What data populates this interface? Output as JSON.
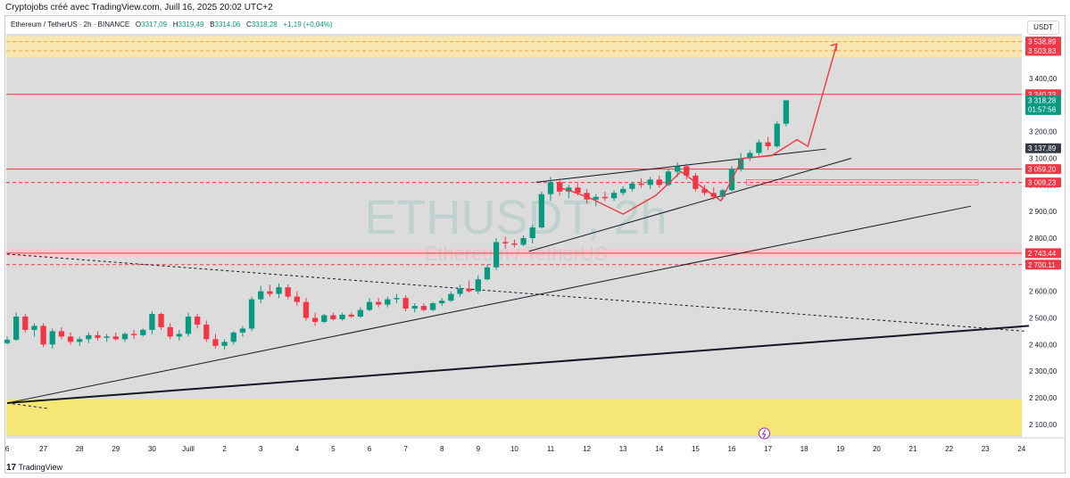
{
  "header": {
    "attribution": "Cryptojobs créé avec TradingView.com, Juill 16, 2025 20:02 UTC+2"
  },
  "legend": {
    "symbol": "Ethereum / TetherUS · 2h · BINANCE",
    "open_k": "O",
    "open": "3317,09",
    "high_k": "H",
    "high": "3319,49",
    "low_k": "B",
    "low": "3314,06",
    "close_k": "C",
    "close": "3318,28",
    "change": "+1,19 (+0,04%)"
  },
  "currency": "USDT",
  "watermark": {
    "main": "ETHUSDT, 2h",
    "sub": "Ethereum / TetherUS"
  },
  "footer": {
    "brand": "TradingView"
  },
  "colors": {
    "up": "#089981",
    "down": "#f23645",
    "resistance": "#f23645",
    "zone_yellow": "#f5e79a",
    "zone_orange": "#f9d9a0",
    "plot_bg": "#dcdcdc"
  },
  "chart_data": {
    "type": "candlestick",
    "symbol": "ETHUSDT",
    "interval": "2h",
    "ylim": [
      2070,
      3590
    ],
    "y_ticks": [
      "2 100,00",
      "2 200,00",
      "2 300,00",
      "2 400,00",
      "2 500,00",
      "2 600,00",
      "2 700,00",
      "2 800,00",
      "2 900,00",
      "3 000,00",
      "3 100,00",
      "3 200,00",
      "3 300,00",
      "3 400,00"
    ],
    "y_tick_values": [
      2100,
      2200,
      2300,
      2400,
      2500,
      2600,
      2700,
      2800,
      2900,
      3000,
      3100,
      3200,
      3300,
      3400
    ],
    "x_ticks": [
      "6",
      "27",
      "28",
      "29",
      "30",
      "Juill",
      "2",
      "3",
      "4",
      "5",
      "6",
      "7",
      "8",
      "9",
      "10",
      "11",
      "12",
      "13",
      "14",
      "15",
      "16",
      "17",
      "18",
      "19",
      "20",
      "21",
      "22",
      "23",
      "24"
    ],
    "x_tick_days": [
      0,
      1,
      2,
      3,
      4,
      5,
      6,
      7,
      8,
      9,
      10,
      11,
      12,
      13,
      14,
      15,
      16,
      17,
      18,
      19,
      20,
      21,
      22,
      23,
      24,
      25,
      26,
      27,
      28
    ],
    "price_labels": [
      {
        "text": "3 538,89",
        "value": 3538.89,
        "color": "#f23645"
      },
      {
        "text": "3 503,83",
        "value": 3503.83,
        "color": "#f23645"
      },
      {
        "text": "3 340,33",
        "value": 3340.33,
        "color": "#f23645"
      },
      {
        "text": "3 318,28",
        "value": 3318.28,
        "color": "#089981",
        "extra": "01:57:56"
      },
      {
        "text": "3 137,89",
        "value": 3137.89,
        "color": "#363a45"
      },
      {
        "text": "3 059,20",
        "value": 3059.2,
        "color": "#f23645"
      },
      {
        "text": "3 009,23",
        "value": 3009.23,
        "color": "#f23645"
      },
      {
        "text": "2 743,44",
        "value": 2743.44,
        "color": "#f23645"
      },
      {
        "text": "2 700,11",
        "value": 2700.11,
        "color": "#f23645"
      }
    ],
    "horizontal_levels": [
      {
        "value": 3538.89,
        "style": "dashed",
        "color": "#f29d38"
      },
      {
        "value": 3503.83,
        "style": "dashed",
        "color": "#f29d38"
      },
      {
        "value": 3340.33,
        "style": "solid",
        "color": "#f23645"
      },
      {
        "value": 3059.2,
        "style": "solid",
        "color": "#f23645"
      },
      {
        "value": 3009.23,
        "style": "dashed",
        "color": "#f23645"
      },
      {
        "value": 2743.44,
        "style": "solid",
        "color": "#f23645"
      },
      {
        "value": 2700.11,
        "style": "dashed",
        "color": "#f23645"
      }
    ],
    "zones": [
      {
        "from": 3480,
        "to": 3560,
        "color": "#f9e6b0"
      },
      {
        "from": 2060,
        "to": 2195,
        "color": "#f5e66f"
      },
      {
        "from": 2730,
        "to": 2760,
        "color": "#f8c9cc"
      }
    ],
    "trendlines": [
      {
        "from": [
          0,
          2180
        ],
        "to": [
          28.2,
          2470
        ],
        "color": "#131722",
        "width": 2
      },
      {
        "from": [
          0,
          2180
        ],
        "to": [
          26.6,
          2920
        ],
        "color": "#131722",
        "width": 1
      },
      {
        "from": [
          14.4,
          2750
        ],
        "to": [
          23.3,
          3100
        ],
        "color": "#131722",
        "width": 1
      },
      {
        "from": [
          14.6,
          3010
        ],
        "to": [
          22.6,
          3135
        ],
        "color": "#131722",
        "width": 1
      },
      {
        "from": [
          0,
          2740
        ],
        "to": [
          28.1,
          2450
        ],
        "color": "#131722",
        "width": 1,
        "dash": true
      },
      {
        "from": [
          0,
          2180
        ],
        "to": [
          1.1,
          2160
        ],
        "color": "#131722",
        "width": 1,
        "dash": true
      }
    ],
    "projection": {
      "color": "#f23645",
      "points": [
        [
          15.2,
          2990
        ],
        [
          15.5,
          2980
        ],
        [
          16.1,
          2950
        ],
        [
          17,
          2890
        ],
        [
          17.9,
          2960
        ],
        [
          18.6,
          3050
        ],
        [
          19.2,
          2990
        ],
        [
          19.7,
          2940
        ],
        [
          20.3,
          3100
        ],
        [
          21.1,
          3110
        ],
        [
          21.8,
          3170
        ],
        [
          22.1,
          3145
        ],
        [
          22.9,
          3530
        ]
      ]
    },
    "candles": [
      [
        0.0,
        2405,
        2430,
        2400,
        2418
      ],
      [
        0.25,
        2418,
        2520,
        2414,
        2505
      ],
      [
        0.5,
        2505,
        2515,
        2445,
        2455
      ],
      [
        0.75,
        2455,
        2480,
        2430,
        2470
      ],
      [
        1.0,
        2470,
        2480,
        2390,
        2400
      ],
      [
        1.25,
        2400,
        2460,
        2385,
        2450
      ],
      [
        1.5,
        2450,
        2465,
        2420,
        2430
      ],
      [
        1.75,
        2430,
        2445,
        2400,
        2410
      ],
      [
        2.0,
        2410,
        2430,
        2395,
        2420
      ],
      [
        2.25,
        2420,
        2445,
        2405,
        2435
      ],
      [
        2.5,
        2435,
        2450,
        2415,
        2425
      ],
      [
        2.75,
        2425,
        2440,
        2410,
        2430
      ],
      [
        3.0,
        2430,
        2445,
        2415,
        2420
      ],
      [
        3.25,
        2420,
        2445,
        2410,
        2440
      ],
      [
        3.5,
        2440,
        2455,
        2420,
        2435
      ],
      [
        3.75,
        2435,
        2460,
        2430,
        2455
      ],
      [
        4.0,
        2455,
        2525,
        2440,
        2515
      ],
      [
        4.25,
        2515,
        2520,
        2455,
        2465
      ],
      [
        4.5,
        2465,
        2480,
        2420,
        2430
      ],
      [
        4.75,
        2430,
        2455,
        2415,
        2440
      ],
      [
        5.0,
        2440,
        2520,
        2430,
        2505
      ],
      [
        5.25,
        2505,
        2515,
        2460,
        2475
      ],
      [
        5.5,
        2475,
        2490,
        2410,
        2420
      ],
      [
        5.75,
        2420,
        2440,
        2385,
        2395
      ],
      [
        6.0,
        2395,
        2420,
        2380,
        2410
      ],
      [
        6.25,
        2410,
        2450,
        2400,
        2445
      ],
      [
        6.5,
        2445,
        2470,
        2430,
        2460
      ],
      [
        6.75,
        2460,
        2580,
        2450,
        2570
      ],
      [
        7.0,
        2570,
        2620,
        2555,
        2600
      ],
      [
        7.25,
        2600,
        2625,
        2580,
        2590
      ],
      [
        7.5,
        2590,
        2630,
        2575,
        2615
      ],
      [
        7.75,
        2615,
        2625,
        2570,
        2580
      ],
      [
        8.0,
        2580,
        2600,
        2545,
        2560
      ],
      [
        8.25,
        2560,
        2575,
        2490,
        2500
      ],
      [
        8.5,
        2500,
        2520,
        2470,
        2485
      ],
      [
        8.75,
        2485,
        2515,
        2480,
        2510
      ],
      [
        9.0,
        2510,
        2520,
        2490,
        2495
      ],
      [
        9.25,
        2495,
        2520,
        2490,
        2512
      ],
      [
        9.5,
        2512,
        2520,
        2500,
        2505
      ],
      [
        9.75,
        2505,
        2540,
        2500,
        2530
      ],
      [
        10.0,
        2530,
        2575,
        2525,
        2560
      ],
      [
        10.25,
        2560,
        2575,
        2540,
        2550
      ],
      [
        10.5,
        2550,
        2580,
        2540,
        2570
      ],
      [
        10.75,
        2570,
        2590,
        2555,
        2575
      ],
      [
        11.0,
        2575,
        2585,
        2525,
        2535
      ],
      [
        11.25,
        2535,
        2555,
        2520,
        2545
      ],
      [
        11.5,
        2545,
        2555,
        2525,
        2530
      ],
      [
        11.75,
        2530,
        2560,
        2525,
        2555
      ],
      [
        12.0,
        2555,
        2575,
        2545,
        2565
      ],
      [
        12.25,
        2565,
        2600,
        2560,
        2590
      ],
      [
        12.5,
        2590,
        2625,
        2580,
        2610
      ],
      [
        12.75,
        2610,
        2640,
        2595,
        2600
      ],
      [
        13.0,
        2600,
        2660,
        2590,
        2645
      ],
      [
        13.25,
        2645,
        2700,
        2640,
        2690
      ],
      [
        13.5,
        2690,
        2800,
        2680,
        2785
      ],
      [
        13.75,
        2785,
        2805,
        2760,
        2780
      ],
      [
        14.0,
        2780,
        2795,
        2765,
        2775
      ],
      [
        14.25,
        2775,
        2810,
        2770,
        2800
      ],
      [
        14.5,
        2800,
        2850,
        2780,
        2840
      ],
      [
        14.75,
        2840,
        2975,
        2835,
        2965
      ],
      [
        15.0,
        2965,
        3030,
        2940,
        3010
      ],
      [
        15.25,
        3010,
        3025,
        2960,
        2975
      ],
      [
        15.5,
        2975,
        3000,
        2950,
        2990
      ],
      [
        15.75,
        2990,
        3005,
        2960,
        2970
      ],
      [
        16.0,
        2970,
        2985,
        2930,
        2945
      ],
      [
        16.25,
        2945,
        2965,
        2920,
        2955
      ],
      [
        16.5,
        2955,
        2975,
        2940,
        2950
      ],
      [
        16.75,
        2950,
        2980,
        2940,
        2970
      ],
      [
        17.0,
        2970,
        2995,
        2960,
        2985
      ],
      [
        17.25,
        2985,
        3010,
        2975,
        3005
      ],
      [
        17.5,
        3005,
        3025,
        2990,
        3000
      ],
      [
        17.75,
        3000,
        3030,
        2985,
        3020
      ],
      [
        18.0,
        3020,
        3035,
        2990,
        3000
      ],
      [
        18.25,
        3000,
        3060,
        2995,
        3050
      ],
      [
        18.5,
        3050,
        3085,
        3030,
        3070
      ],
      [
        18.75,
        3070,
        3080,
        3020,
        3035
      ],
      [
        19.0,
        3035,
        3045,
        2975,
        2985
      ],
      [
        19.25,
        2985,
        3000,
        2960,
        2970
      ],
      [
        19.5,
        2970,
        2990,
        2945,
        2955
      ],
      [
        19.75,
        2955,
        2985,
        2945,
        2980
      ],
      [
        20.0,
        2980,
        3070,
        2975,
        3060
      ],
      [
        20.25,
        3060,
        3120,
        3050,
        3100
      ],
      [
        20.5,
        3100,
        3130,
        3090,
        3120
      ],
      [
        20.75,
        3120,
        3170,
        3110,
        3160
      ],
      [
        21.0,
        3160,
        3180,
        3130,
        3145
      ],
      [
        21.25,
        3145,
        3240,
        3140,
        3230
      ],
      [
        21.5,
        3230,
        3318,
        3220,
        3318
      ]
    ]
  }
}
